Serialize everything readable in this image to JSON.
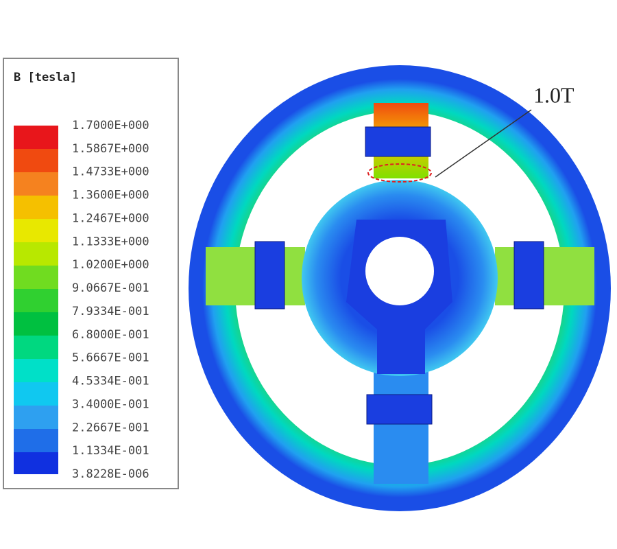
{
  "legend": {
    "title": "B [tesla]",
    "labels": [
      "1.7000E+000",
      "1.5867E+000",
      "1.4733E+000",
      "1.3600E+000",
      "1.2467E+000",
      "1.1333E+000",
      "1.0200E+000",
      "9.0667E-001",
      "7.9334E-001",
      "6.8000E-001",
      "5.6667E-001",
      "4.5334E-001",
      "3.4000E-001",
      "2.2667E-001",
      "1.1334E-001",
      "3.8228E-006"
    ]
  },
  "annotation": "1.0T"
}
